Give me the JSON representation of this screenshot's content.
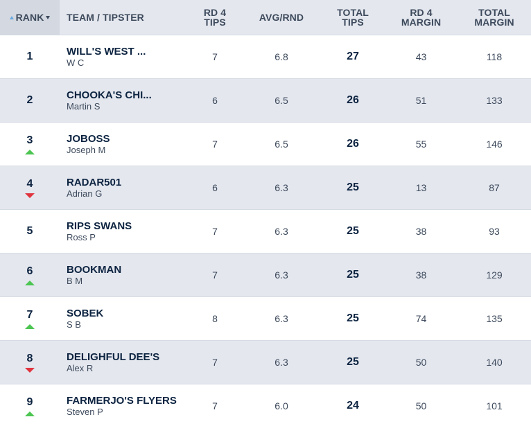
{
  "header": {
    "rank": "RANK",
    "team": "TEAM / TIPSTER",
    "rd4_tips_line1": "RD 4",
    "rd4_tips_line2": "TIPS",
    "avg": "AVG/RND",
    "total_tips_line1": "TOTAL",
    "total_tips_line2": "TIPS",
    "rd4_margin_line1": "RD 4",
    "rd4_margin_line2": "MARGIN",
    "total_margin_line1": "TOTAL",
    "total_margin_line2": "MARGIN"
  },
  "colors": {
    "up": "#4cc552",
    "down": "#e0343e",
    "navy": "#0c2340",
    "row_alt": "#e4e7ee"
  },
  "rows": [
    {
      "rank": "1",
      "movement": "none",
      "team": "WILL'S WEST ...",
      "tipster": "W C",
      "rd4_tips": "7",
      "avg": "6.8",
      "total_tips": "27",
      "rd4_margin": "43",
      "total_margin": "118"
    },
    {
      "rank": "2",
      "movement": "none",
      "team": "CHOOKA'S CHI...",
      "tipster": "Martin S",
      "rd4_tips": "6",
      "avg": "6.5",
      "total_tips": "26",
      "rd4_margin": "51",
      "total_margin": "133"
    },
    {
      "rank": "3",
      "movement": "up",
      "team": "JOBOSS",
      "tipster": "Joseph M",
      "rd4_tips": "7",
      "avg": "6.5",
      "total_tips": "26",
      "rd4_margin": "55",
      "total_margin": "146"
    },
    {
      "rank": "4",
      "movement": "down",
      "team": "RADAR501",
      "tipster": "Adrian G",
      "rd4_tips": "6",
      "avg": "6.3",
      "total_tips": "25",
      "rd4_margin": "13",
      "total_margin": "87"
    },
    {
      "rank": "5",
      "movement": "none",
      "team": "RIPS SWANS",
      "tipster": "Ross P",
      "rd4_tips": "7",
      "avg": "6.3",
      "total_tips": "25",
      "rd4_margin": "38",
      "total_margin": "93"
    },
    {
      "rank": "6",
      "movement": "up",
      "team": "BOOKMAN",
      "tipster": "B M",
      "rd4_tips": "7",
      "avg": "6.3",
      "total_tips": "25",
      "rd4_margin": "38",
      "total_margin": "129"
    },
    {
      "rank": "7",
      "movement": "up",
      "team": "SOBEK",
      "tipster": "S B",
      "rd4_tips": "8",
      "avg": "6.3",
      "total_tips": "25",
      "rd4_margin": "74",
      "total_margin": "135"
    },
    {
      "rank": "8",
      "movement": "down",
      "team": "DELIGHFUL DEE'S",
      "tipster": "Alex R",
      "rd4_tips": "7",
      "avg": "6.3",
      "total_tips": "25",
      "rd4_margin": "50",
      "total_margin": "140"
    },
    {
      "rank": "9",
      "movement": "up",
      "team": "FARMERJO'S FLYERS",
      "tipster": "Steven P",
      "rd4_tips": "7",
      "avg": "6.0",
      "total_tips": "24",
      "rd4_margin": "50",
      "total_margin": "101"
    }
  ]
}
